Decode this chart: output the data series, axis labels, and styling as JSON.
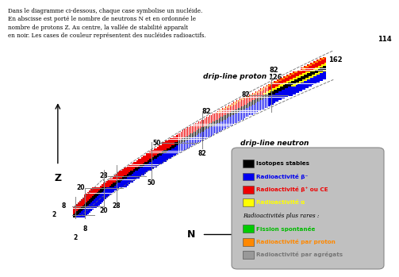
{
  "background_color": "#ffffff",
  "color_stable": "#000000",
  "color_beta_minus": "#0000ee",
  "color_beta_plus": "#ee0000",
  "color_alpha": "#ffff00",
  "color_fission": "#00cc00",
  "color_proton": "#ff8800",
  "color_cluster": "#999999",
  "magic_numbers_N": [
    2,
    8,
    20,
    28,
    50,
    82,
    126
  ],
  "magic_numbers_Z": [
    2,
    8,
    20,
    28,
    50,
    82,
    114
  ],
  "drip_line_proton_label": "drip-line proton",
  "drip_line_neutron_label": "drip-line neutron",
  "xlabel": "N",
  "ylabel": "Z",
  "description": "Dans le diagramme ci-dessous, chaque case symbolise un nucléide.\nEn abscisse est porté le nombre de neutrons N et en ordonnée le\nnombre de protons Z. Au centre, la vallée de stabilité apparaît\nen noir. Les cases de couleur représentent des nucléides radioactifs."
}
